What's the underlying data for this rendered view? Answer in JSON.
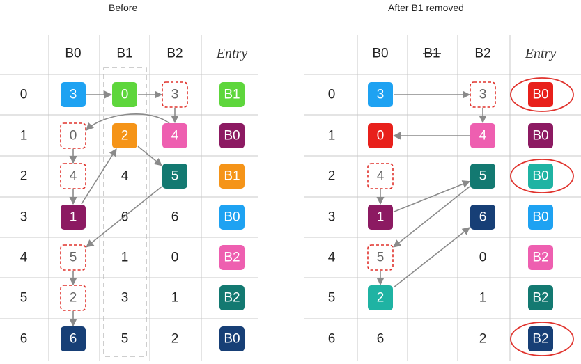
{
  "panels": [
    {
      "title": "Before",
      "headers": [
        "B0",
        "B1",
        "B2",
        "Entry"
      ],
      "removed_bucket": null,
      "rows": [
        "0",
        "1",
        "2",
        "3",
        "4",
        "5",
        "6"
      ],
      "cells": [
        [
          {
            "text": "3",
            "style": "box",
            "color": "#1ea2f2"
          },
          {
            "text": "0",
            "style": "box",
            "color": "#5ed63c"
          },
          {
            "text": "3",
            "style": "dashed"
          }
        ],
        [
          {
            "text": "0",
            "style": "dashed"
          },
          {
            "text": "2",
            "style": "box",
            "color": "#f59418"
          },
          {
            "text": "4",
            "style": "box",
            "color": "#ee5fb0"
          }
        ],
        [
          {
            "text": "4",
            "style": "dashed"
          },
          {
            "text": "4",
            "style": "plain"
          },
          {
            "text": "5",
            "style": "box",
            "color": "#137971"
          }
        ],
        [
          {
            "text": "1",
            "style": "box",
            "color": "#8c1a62"
          },
          {
            "text": "6",
            "style": "plain"
          },
          {
            "text": "6",
            "style": "plain"
          }
        ],
        [
          {
            "text": "5",
            "style": "dashed"
          },
          {
            "text": "1",
            "style": "plain"
          },
          {
            "text": "0",
            "style": "plain"
          }
        ],
        [
          {
            "text": "2",
            "style": "dashed"
          },
          {
            "text": "3",
            "style": "plain"
          },
          {
            "text": "1",
            "style": "plain"
          }
        ],
        [
          {
            "text": "6",
            "style": "box",
            "color": "#173f76"
          },
          {
            "text": "5",
            "style": "plain"
          },
          {
            "text": "2",
            "style": "plain"
          }
        ]
      ],
      "entries": [
        {
          "label": "B1",
          "color": "#5ed63c",
          "circled": false
        },
        {
          "label": "B0",
          "color": "#8c1a62",
          "circled": false
        },
        {
          "label": "B1",
          "color": "#f59418",
          "circled": false
        },
        {
          "label": "B0",
          "color": "#1ea2f2",
          "circled": false
        },
        {
          "label": "B2",
          "color": "#ee5fb0",
          "circled": false
        },
        {
          "label": "B2",
          "color": "#137971",
          "circled": false
        },
        {
          "label": "B0",
          "color": "#173f76",
          "circled": false
        }
      ]
    },
    {
      "title": "After B1 removed",
      "headers": [
        "B0",
        "B1",
        "B2",
        "Entry"
      ],
      "removed_bucket": "B1",
      "rows": [
        "0",
        "1",
        "2",
        "3",
        "4",
        "5",
        "6"
      ],
      "cells": [
        [
          {
            "text": "3",
            "style": "box",
            "color": "#1ea2f2"
          },
          {
            "text": "",
            "style": "none"
          },
          {
            "text": "3",
            "style": "dashed"
          }
        ],
        [
          {
            "text": "0",
            "style": "box",
            "color": "#e8201b"
          },
          {
            "text": "",
            "style": "none"
          },
          {
            "text": "4",
            "style": "box",
            "color": "#ee5fb0"
          }
        ],
        [
          {
            "text": "4",
            "style": "dashed"
          },
          {
            "text": "",
            "style": "none"
          },
          {
            "text": "5",
            "style": "box",
            "color": "#137971"
          }
        ],
        [
          {
            "text": "1",
            "style": "box",
            "color": "#8c1a62"
          },
          {
            "text": "",
            "style": "none"
          },
          {
            "text": "6",
            "style": "box",
            "color": "#173f76"
          }
        ],
        [
          {
            "text": "5",
            "style": "dashed"
          },
          {
            "text": "",
            "style": "none"
          },
          {
            "text": "0",
            "style": "plain"
          }
        ],
        [
          {
            "text": "2",
            "style": "box",
            "color": "#1fb3a3"
          },
          {
            "text": "",
            "style": "none"
          },
          {
            "text": "1",
            "style": "plain"
          }
        ],
        [
          {
            "text": "6",
            "style": "plain"
          },
          {
            "text": "",
            "style": "none"
          },
          {
            "text": "2",
            "style": "plain"
          }
        ]
      ],
      "entries": [
        {
          "label": "B0",
          "color": "#e8201b",
          "circled": true
        },
        {
          "label": "B0",
          "color": "#8c1a62",
          "circled": false
        },
        {
          "label": "B0",
          "color": "#1fb3a3",
          "circled": true
        },
        {
          "label": "B0",
          "color": "#1ea2f2",
          "circled": false
        },
        {
          "label": "B2",
          "color": "#ee5fb0",
          "circled": false
        },
        {
          "label": "B2",
          "color": "#137971",
          "circled": false
        },
        {
          "label": "B2",
          "color": "#173f76",
          "circled": true
        }
      ]
    }
  ],
  "arrows": [
    {
      "panel": 0,
      "from": [
        0,
        0
      ],
      "to": [
        0,
        1
      ]
    },
    {
      "panel": 0,
      "from": [
        0,
        1
      ],
      "to": [
        0,
        2
      ]
    },
    {
      "panel": 0,
      "from": [
        0,
        2
      ],
      "to": [
        1,
        2
      ]
    },
    {
      "panel": 0,
      "from": [
        1,
        2
      ],
      "to": [
        1,
        0
      ]
    },
    {
      "panel": 0,
      "from": [
        1,
        0
      ],
      "to": [
        2,
        0
      ]
    },
    {
      "panel": 0,
      "from": [
        2,
        0
      ],
      "to": [
        3,
        0
      ]
    },
    {
      "panel": 0,
      "from": [
        3,
        0
      ],
      "to": [
        1,
        1
      ]
    },
    {
      "panel": 0,
      "from": [
        1,
        1
      ],
      "to": [
        2,
        2
      ]
    },
    {
      "panel": 0,
      "from": [
        2,
        2
      ],
      "to": [
        4,
        0
      ]
    },
    {
      "panel": 0,
      "from": [
        4,
        0
      ],
      "to": [
        5,
        0
      ]
    },
    {
      "panel": 0,
      "from": [
        5,
        0
      ],
      "to": [
        6,
        0
      ]
    },
    {
      "panel": 1,
      "from": [
        0,
        0
      ],
      "to": [
        0,
        2
      ]
    },
    {
      "panel": 1,
      "from": [
        0,
        2
      ],
      "to": [
        1,
        2
      ]
    },
    {
      "panel": 1,
      "from": [
        1,
        2
      ],
      "to": [
        1,
        0
      ]
    },
    {
      "panel": 1,
      "from": [
        2,
        0
      ],
      "to": [
        3,
        0
      ]
    },
    {
      "panel": 1,
      "from": [
        3,
        0
      ],
      "to": [
        2,
        2
      ]
    },
    {
      "panel": 1,
      "from": [
        2,
        2
      ],
      "to": [
        4,
        0
      ]
    },
    {
      "panel": 1,
      "from": [
        4,
        0
      ],
      "to": [
        5,
        0
      ]
    },
    {
      "panel": 1,
      "from": [
        5,
        0
      ],
      "to": [
        3,
        2
      ]
    }
  ]
}
